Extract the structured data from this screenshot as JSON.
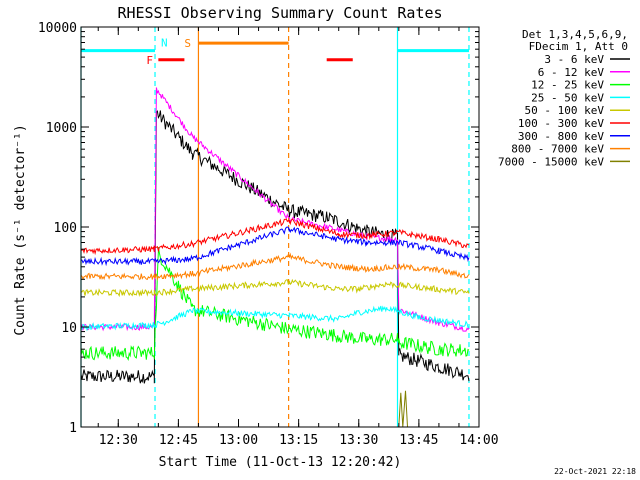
{
  "chart_data": {
    "type": "line",
    "title": "RHESSI Observing Summary Count Rates",
    "xlabel": "Start Time (11-Oct-13 12:20:42)",
    "ylabel": "Count Rate (s⁻¹ detector⁻¹)",
    "y_scale": "log",
    "ylim": [
      1,
      10000
    ],
    "xlim": [
      "12:20:42",
      "14:00:00"
    ],
    "x_ticks": [
      "12:30",
      "12:45",
      "13:00",
      "13:15",
      "13:30",
      "13:45",
      "14:00"
    ],
    "y_ticks": [
      "1",
      "10",
      "100",
      "1000",
      "10000"
    ],
    "legend_header": [
      "Det 1,3,4,5,6,9,",
      "FDecim 1, Att 0"
    ],
    "legend_placement": "right",
    "footer_date": "22-Oct-2021 22:18",
    "flags": [
      {
        "label": "N",
        "type": "night",
        "color": "#00ffff",
        "level": 5800,
        "segments": [
          [
            "12:20:42",
            "12:39:10"
          ],
          [
            "13:39:40",
            "13:57:30"
          ]
        ]
      },
      {
        "label": "F",
        "type": "flare",
        "color": "#ff0000",
        "level": 4700,
        "segments": [
          [
            "12:40:00",
            "12:46:30"
          ],
          [
            "13:22:00",
            "13:28:30"
          ]
        ]
      },
      {
        "label": "S",
        "type": "saa",
        "color": "#ff8000",
        "level": 6900,
        "segments": [
          [
            "12:50:00",
            "13:12:30"
          ]
        ]
      }
    ],
    "boundaries": [
      {
        "time": "12:20:42",
        "color": "#00ffff",
        "style": "solid"
      },
      {
        "time": "12:39:10",
        "color": "#00ffff",
        "style": "dashed"
      },
      {
        "time": "12:50:00",
        "color": "#ff8000",
        "style": "solid"
      },
      {
        "time": "13:12:30",
        "color": "#ff8000",
        "style": "dashed"
      },
      {
        "time": "13:39:40",
        "color": "#00ffff",
        "style": "solid"
      },
      {
        "time": "13:57:30",
        "color": "#00ffff",
        "style": "dashed"
      }
    ],
    "series": [
      {
        "name": "3 - 6 keV",
        "color": "#000000",
        "points": [
          [
            "12:20:42",
            3.2
          ],
          [
            "12:39:00",
            3.2
          ],
          [
            "12:39:30",
            1400
          ],
          [
            "12:48:30",
            550
          ],
          [
            "13:12:40",
            145
          ],
          [
            "13:22:00",
            125
          ],
          [
            "13:32:00",
            90
          ],
          [
            "13:39:40",
            80
          ],
          [
            "13:40:00",
            5.2
          ],
          [
            "13:50:00",
            4.0
          ],
          [
            "13:57:30",
            3.3
          ]
        ]
      },
      {
        "name": "6 - 12 keV",
        "color": "#ff00ff",
        "points": [
          [
            "12:20:42",
            10
          ],
          [
            "12:39:00",
            10
          ],
          [
            "12:39:30",
            2400
          ],
          [
            "12:48:30",
            800
          ],
          [
            "13:12:40",
            120
          ],
          [
            "13:22:00",
            100
          ],
          [
            "13:32:00",
            80
          ],
          [
            "13:39:40",
            75
          ],
          [
            "13:40:00",
            15
          ],
          [
            "13:50:00",
            11
          ],
          [
            "13:57:30",
            9.5
          ]
        ]
      },
      {
        "name": "12 - 25 keV",
        "color": "#00ff00",
        "points": [
          [
            "12:20:42",
            5.5
          ],
          [
            "12:39:00",
            5.5
          ],
          [
            "12:40:00",
            55
          ],
          [
            "12:48:30",
            15
          ],
          [
            "13:12:40",
            9.5
          ],
          [
            "13:22:00",
            8.5
          ],
          [
            "13:32:00",
            7.5
          ],
          [
            "13:39:40",
            7.5
          ],
          [
            "13:40:00",
            7.0
          ],
          [
            "13:50:00",
            6.0
          ],
          [
            "13:57:30",
            5.8
          ]
        ]
      },
      {
        "name": "25 - 50 keV",
        "color": "#00ffff",
        "points": [
          [
            "12:20:42",
            10
          ],
          [
            "12:39:00",
            10.5
          ],
          [
            "12:41:00",
            11
          ],
          [
            "12:48:30",
            14.5
          ],
          [
            "13:12:40",
            13
          ],
          [
            "13:25:00",
            12
          ],
          [
            "13:30:00",
            14
          ],
          [
            "13:37:00",
            15.5
          ],
          [
            "13:45:00",
            12.5
          ],
          [
            "13:57:30",
            10.5
          ]
        ]
      },
      {
        "name": "50 - 100 keV",
        "color": "#c8c800",
        "points": [
          [
            "12:20:42",
            22
          ],
          [
            "12:39:00",
            22
          ],
          [
            "12:48:30",
            24
          ],
          [
            "13:12:40",
            28
          ],
          [
            "13:25:00",
            24
          ],
          [
            "13:30:00",
            24
          ],
          [
            "13:37:00",
            27
          ],
          [
            "13:45:00",
            25
          ],
          [
            "13:57:30",
            22
          ]
        ]
      },
      {
        "name": "100 - 300 keV",
        "color": "#ff0000",
        "points": [
          [
            "12:20:42",
            58
          ],
          [
            "12:39:00",
            60
          ],
          [
            "12:48:30",
            68
          ],
          [
            "13:12:40",
            115
          ],
          [
            "13:25:00",
            85
          ],
          [
            "13:32:00",
            82
          ],
          [
            "13:40:00",
            88
          ],
          [
            "13:50:00",
            75
          ],
          [
            "13:57:30",
            64
          ]
        ]
      },
      {
        "name": "300 - 800 keV",
        "color": "#0000ff",
        "points": [
          [
            "12:20:42",
            45
          ],
          [
            "12:39:00",
            45
          ],
          [
            "12:48:30",
            48
          ],
          [
            "13:12:40",
            95
          ],
          [
            "13:25:00",
            75
          ],
          [
            "13:32:00",
            70
          ],
          [
            "13:40:00",
            70
          ],
          [
            "13:50:00",
            58
          ],
          [
            "13:57:30",
            48
          ]
        ]
      },
      {
        "name": "800 - 7000 keV",
        "color": "#ff8000",
        "points": [
          [
            "12:20:42",
            32
          ],
          [
            "12:39:00",
            32
          ],
          [
            "12:48:30",
            34
          ],
          [
            "13:12:40",
            50
          ],
          [
            "13:25:00",
            40
          ],
          [
            "13:32:00",
            38
          ],
          [
            "13:40:00",
            40
          ],
          [
            "13:50:00",
            37
          ],
          [
            "13:57:30",
            32
          ]
        ]
      },
      {
        "name": "7000 - 15000 keV",
        "color": "#808000",
        "points": [
          [
            "13:40:00",
            1.0
          ],
          [
            "13:40:30",
            2.2
          ],
          [
            "13:41:00",
            1.0
          ],
          [
            "13:41:40",
            2.3
          ],
          [
            "13:42:10",
            1.0
          ]
        ]
      }
    ]
  }
}
